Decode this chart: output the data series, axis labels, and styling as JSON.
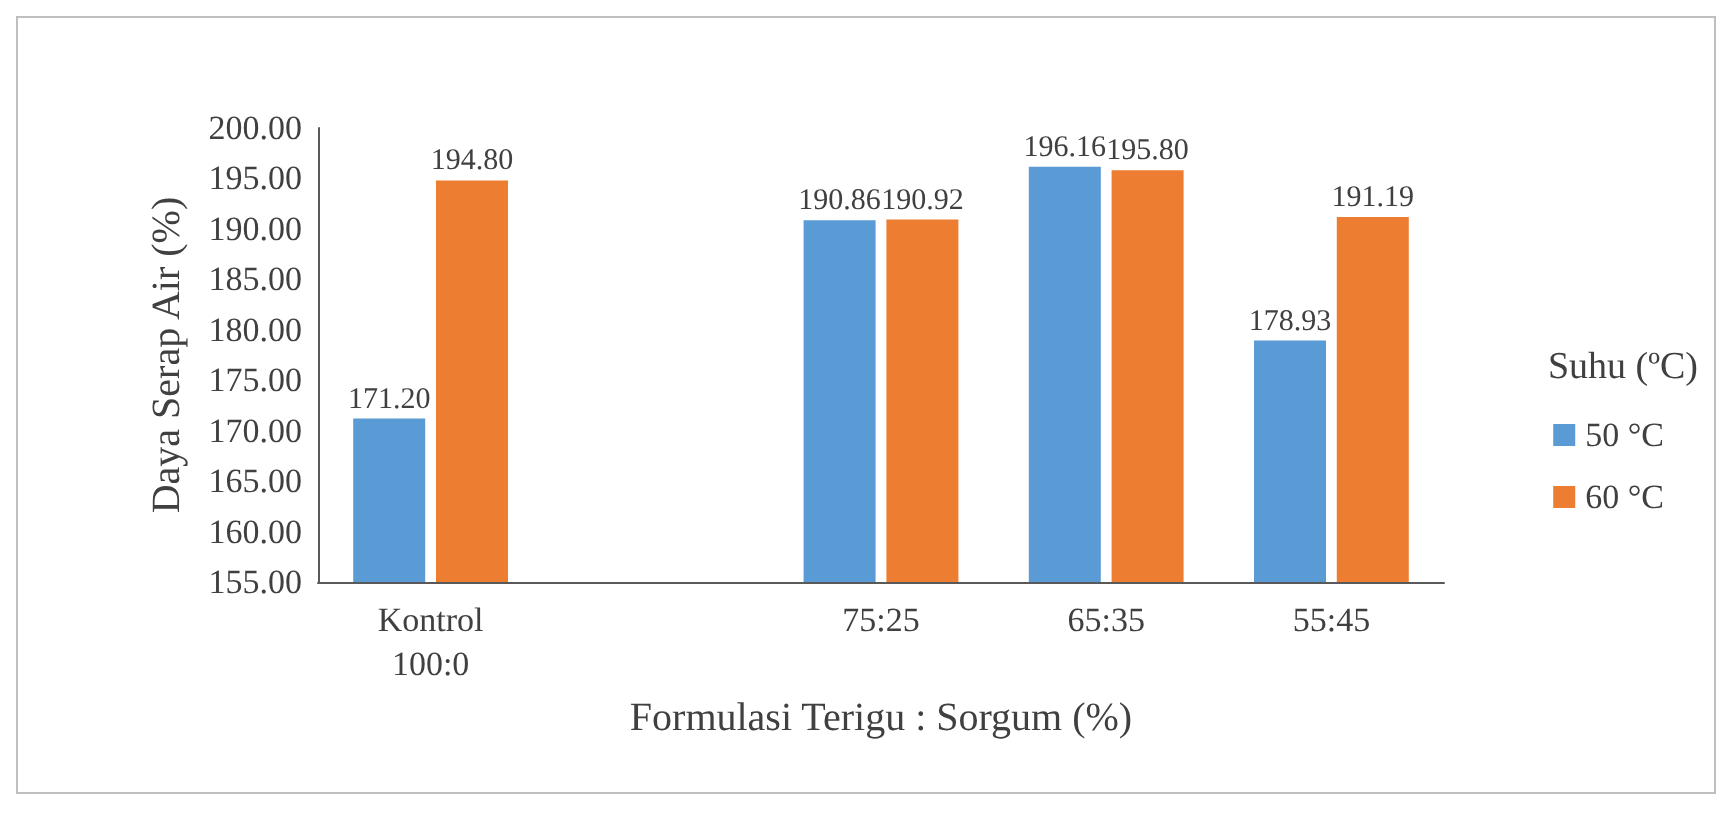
{
  "chart_data": {
    "type": "bar",
    "categories": [
      "Kontrol\n100:0",
      null,
      "75:25",
      "65:35",
      "55:45"
    ],
    "series": [
      {
        "name": "50 °C",
        "color": "#5b9bd5",
        "values": [
          171.2,
          null,
          190.86,
          196.16,
          178.93
        ],
        "value_labels": [
          "171.20",
          null,
          "190.86",
          "196.16",
          "178.93"
        ]
      },
      {
        "name": "60 °C",
        "color": "#ed7d31",
        "values": [
          194.8,
          null,
          190.92,
          195.8,
          191.19
        ],
        "value_labels": [
          "194.80",
          null,
          "190.92",
          "195.80",
          "191.19"
        ]
      }
    ],
    "xlabel": "Formulasi Terigu : Sorgum (%)",
    "ylabel": "Daya Serap Air (%)",
    "legend_title": "Suhu (ºC)",
    "ylim": [
      155,
      200
    ],
    "yticks": [
      {
        "value": 155,
        "label": "155.00"
      },
      {
        "value": 160,
        "label": "160.00"
      },
      {
        "value": 165,
        "label": "165.00"
      },
      {
        "value": 170,
        "label": "170.00"
      },
      {
        "value": 175,
        "label": "175.00"
      },
      {
        "value": 180,
        "label": "180.00"
      },
      {
        "value": 185,
        "label": "185.00"
      },
      {
        "value": 190,
        "label": "190.00"
      },
      {
        "value": 195,
        "label": "195.00"
      },
      {
        "value": 200,
        "label": "200.00"
      }
    ],
    "grid": false,
    "legend": "right"
  }
}
